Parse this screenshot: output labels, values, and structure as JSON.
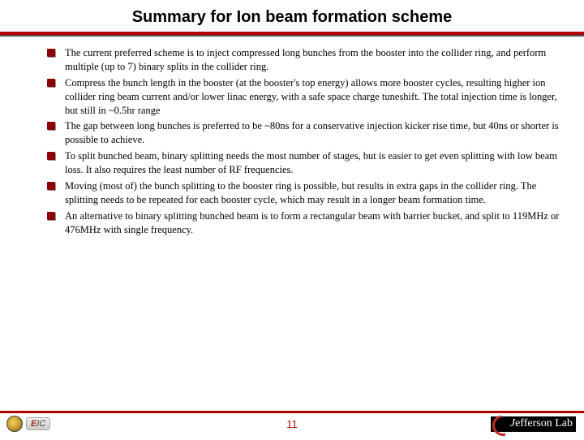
{
  "title": "Summary for Ion beam formation scheme",
  "bullets": [
    "The current preferred scheme is to inject compressed long bunches from the booster into the collider ring, and perform multiple (up to 7) binary splits in the collider ring.",
    "Compress the bunch length in the booster (at the booster's top energy) allows more booster cycles, resulting higher ion collider ring beam current and/or lower linac energy, with a safe space charge tuneshift. The total injection time is longer, but still in ~0.5hr range",
    "The gap between long bunches is preferred to be ~80ns for a conservative injection kicker rise time, but 40ns or shorter is possible to achieve.",
    "To split bunched beam, binary splitting needs the most number of stages, but is easier to get even splitting with low beam loss. It also requires the least number of RF frequencies.",
    "Moving (most of) the bunch splitting to the booster ring is possible, but results in extra gaps in the collider ring. The splitting needs to be repeated for each booster cycle, which may result in a longer beam formation time.",
    "An alternative to binary splitting bunched beam is to form a rectangular beam with barrier bucket, and split to 119MHz or 476MHz with single frequency."
  ],
  "page_number": "11",
  "footer": {
    "left_logo_text": "EIC",
    "right_logo_text": "Jefferson Lab"
  },
  "colors": {
    "accent_red": "#b00000",
    "bullet_red": "#8b0000",
    "text": "#000000",
    "background": "#ffffff"
  }
}
